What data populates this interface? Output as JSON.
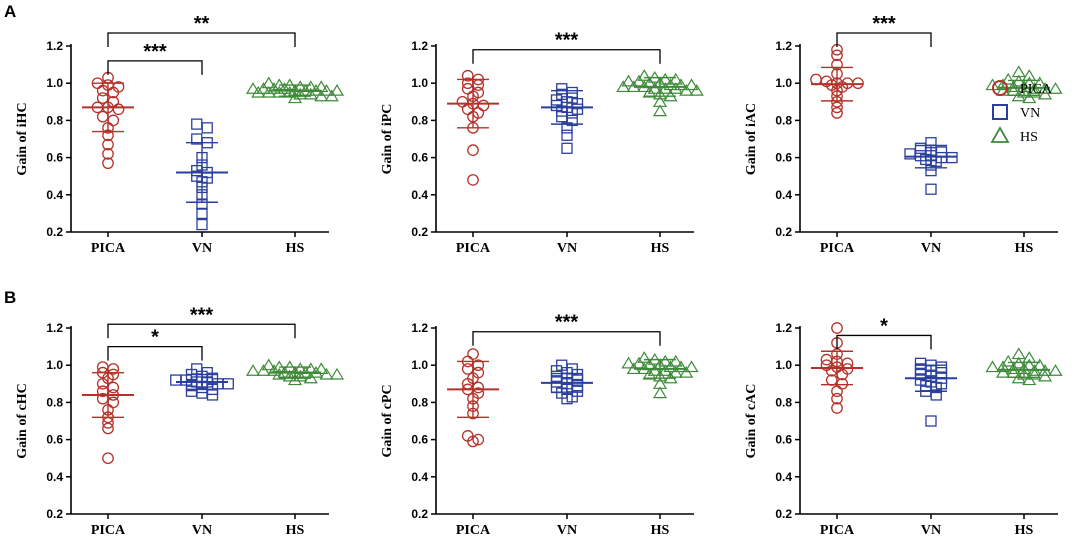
{
  "figure": {
    "panel_labels": [
      "A",
      "B"
    ]
  },
  "colors": {
    "PICA": "#b5322a",
    "VN": "#2b3f9e",
    "HS": "#3f8a3a",
    "axis": "#000000"
  },
  "legend": {
    "items": [
      {
        "label": "PICA",
        "shape": "circle",
        "color_key": "PICA"
      },
      {
        "label": "VN",
        "shape": "square",
        "color_key": "VN"
      },
      {
        "label": "HS",
        "shape": "triangle",
        "color_key": "HS"
      }
    ]
  },
  "chart_data": [
    {
      "type": "scatter",
      "title": "",
      "ylabel": "Gain of iHC",
      "categories": [
        "PICA",
        "VN",
        "HS"
      ],
      "ylim": [
        0.2,
        1.2
      ],
      "yticks": [
        "0.2",
        "0.4",
        "0.6",
        "0.8",
        "1.0",
        "1.2"
      ],
      "series": [
        {
          "name": "PICA",
          "mean": 0.87,
          "sd": 0.13,
          "values": [
            1.03,
            1.0,
            0.99,
            0.98,
            0.96,
            0.95,
            0.92,
            0.9,
            0.87,
            0.87,
            0.86,
            0.82,
            0.8,
            0.76,
            0.72,
            0.67,
            0.62,
            0.57
          ]
        },
        {
          "name": "VN",
          "mean": 0.52,
          "sd": 0.16,
          "values": [
            0.78,
            0.76,
            0.7,
            0.68,
            0.6,
            0.56,
            0.53,
            0.52,
            0.5,
            0.49,
            0.47,
            0.44,
            0.4,
            0.35,
            0.3,
            0.24
          ]
        },
        {
          "name": "HS",
          "mean": 0.96,
          "sd": 0.03,
          "values": [
            1.0,
            0.99,
            0.99,
            0.98,
            0.98,
            0.97,
            0.97,
            0.97,
            0.96,
            0.96,
            0.96,
            0.96,
            0.95,
            0.95,
            0.95,
            0.94,
            0.94,
            0.93,
            0.93,
            0.92,
            0.97,
            0.96,
            0.95,
            0.98
          ]
        }
      ],
      "significance": [
        {
          "from": "PICA",
          "to": "VN",
          "label": "***",
          "level": 1.12
        },
        {
          "from": "PICA",
          "to": "HS",
          "label": "**",
          "level": 1.27
        }
      ]
    },
    {
      "type": "scatter",
      "title": "",
      "ylabel": "Gain of iPC",
      "categories": [
        "PICA",
        "VN",
        "HS"
      ],
      "ylim": [
        0.2,
        1.2
      ],
      "yticks": [
        "0.2",
        "0.4",
        "0.6",
        "0.8",
        "1.0",
        "1.2"
      ],
      "series": [
        {
          "name": "PICA",
          "mean": 0.89,
          "sd": 0.13,
          "values": [
            1.04,
            1.02,
            1.0,
            0.99,
            0.97,
            0.95,
            0.93,
            0.9,
            0.89,
            0.88,
            0.86,
            0.84,
            0.82,
            0.76,
            0.64,
            0.48
          ]
        },
        {
          "name": "VN",
          "mean": 0.87,
          "sd": 0.09,
          "values": [
            0.97,
            0.95,
            0.94,
            0.92,
            0.91,
            0.9,
            0.89,
            0.88,
            0.87,
            0.86,
            0.85,
            0.84,
            0.82,
            0.8,
            0.76,
            0.72,
            0.65
          ]
        },
        {
          "name": "HS",
          "mean": 0.98,
          "sd": 0.05,
          "values": [
            1.04,
            1.03,
            1.02,
            1.01,
            1.0,
            1.0,
            0.99,
            0.99,
            0.98,
            0.98,
            0.98,
            0.97,
            0.97,
            0.96,
            0.96,
            0.95,
            0.94,
            0.93,
            0.9,
            0.85,
            1.01,
            0.99,
            0.97,
            1.02
          ]
        }
      ],
      "significance": [
        {
          "from": "PICA",
          "to": "HS",
          "label": "***",
          "level": 1.18
        }
      ]
    },
    {
      "type": "scatter",
      "title": "",
      "ylabel": "Gain of iAC",
      "categories": [
        "PICA",
        "VN",
        "HS"
      ],
      "ylim": [
        0.2,
        1.2
      ],
      "yticks": [
        "0.2",
        "0.4",
        "0.6",
        "0.8",
        "1.0",
        "1.2"
      ],
      "series": [
        {
          "name": "PICA",
          "mean": 0.995,
          "sd": 0.09,
          "values": [
            1.18,
            1.15,
            1.1,
            1.05,
            1.02,
            1.01,
            1.0,
            1.0,
            1.0,
            0.99,
            0.98,
            0.96,
            0.93,
            0.9,
            0.87,
            0.84
          ]
        },
        {
          "name": "VN",
          "mean": 0.605,
          "sd": 0.06,
          "values": [
            0.68,
            0.65,
            0.64,
            0.63,
            0.62,
            0.61,
            0.61,
            0.6,
            0.6,
            0.59,
            0.58,
            0.56,
            0.53,
            0.43
          ]
        },
        {
          "name": "HS",
          "mean": 0.975,
          "sd": 0.04,
          "values": [
            1.06,
            1.04,
            1.02,
            1.01,
            1.0,
            0.99,
            0.98,
            0.98,
            0.97,
            0.97,
            0.96,
            0.96,
            0.95,
            0.95,
            0.94,
            0.93,
            0.92,
            0.99,
            0.97,
            1.0
          ]
        }
      ],
      "significance": [
        {
          "from": "PICA",
          "to": "VN",
          "label": "***",
          "level": 1.27
        }
      ]
    },
    {
      "type": "scatter",
      "title": "",
      "ylabel": "Gain of cHC",
      "categories": [
        "PICA",
        "VN",
        "HS"
      ],
      "ylim": [
        0.2,
        1.2
      ],
      "yticks": [
        "0.2",
        "0.4",
        "0.6",
        "0.8",
        "1.0",
        "1.2"
      ],
      "series": [
        {
          "name": "PICA",
          "mean": 0.84,
          "sd": 0.12,
          "values": [
            0.99,
            0.98,
            0.96,
            0.95,
            0.93,
            0.9,
            0.88,
            0.86,
            0.84,
            0.82,
            0.8,
            0.76,
            0.72,
            0.69,
            0.66,
            0.5
          ]
        },
        {
          "name": "VN",
          "mean": 0.91,
          "sd": 0.04,
          "values": [
            0.98,
            0.96,
            0.95,
            0.94,
            0.93,
            0.92,
            0.92,
            0.91,
            0.91,
            0.9,
            0.9,
            0.89,
            0.88,
            0.87,
            0.86,
            0.85,
            0.84
          ]
        },
        {
          "name": "HS",
          "mean": 0.96,
          "sd": 0.03,
          "values": [
            1.0,
            0.99,
            0.99,
            0.98,
            0.98,
            0.97,
            0.97,
            0.96,
            0.96,
            0.96,
            0.95,
            0.95,
            0.95,
            0.94,
            0.94,
            0.93,
            0.92,
            0.97,
            0.96,
            0.98
          ]
        }
      ],
      "significance": [
        {
          "from": "PICA",
          "to": "VN",
          "label": "*",
          "level": 1.1
        },
        {
          "from": "PICA",
          "to": "HS",
          "label": "***",
          "level": 1.22
        }
      ]
    },
    {
      "type": "scatter",
      "title": "",
      "ylabel": "Gain of cPC",
      "categories": [
        "PICA",
        "VN",
        "HS"
      ],
      "ylim": [
        0.2,
        1.2
      ],
      "yticks": [
        "0.2",
        "0.4",
        "0.6",
        "0.8",
        "1.0",
        "1.2"
      ],
      "series": [
        {
          "name": "PICA",
          "mean": 0.87,
          "sd": 0.15,
          "values": [
            1.06,
            1.02,
            1.0,
            0.98,
            0.96,
            0.93,
            0.9,
            0.88,
            0.87,
            0.85,
            0.82,
            0.78,
            0.74,
            0.62,
            0.6,
            0.59
          ]
        },
        {
          "name": "VN",
          "mean": 0.905,
          "sd": 0.05,
          "values": [
            1.0,
            0.98,
            0.97,
            0.96,
            0.95,
            0.94,
            0.93,
            0.92,
            0.91,
            0.9,
            0.89,
            0.88,
            0.87,
            0.86,
            0.85,
            0.83,
            0.82
          ]
        },
        {
          "name": "HS",
          "mean": 0.98,
          "sd": 0.05,
          "values": [
            1.04,
            1.03,
            1.02,
            1.01,
            1.0,
            1.0,
            0.99,
            0.99,
            0.98,
            0.98,
            0.97,
            0.97,
            0.96,
            0.96,
            0.95,
            0.94,
            0.93,
            0.9,
            0.85,
            1.01,
            0.99,
            1.02
          ]
        }
      ],
      "significance": [
        {
          "from": "PICA",
          "to": "HS",
          "label": "***",
          "level": 1.18
        }
      ]
    },
    {
      "type": "scatter",
      "title": "",
      "ylabel": "Gain of cAC",
      "categories": [
        "PICA",
        "VN",
        "HS"
      ],
      "ylim": [
        0.2,
        1.2
      ],
      "yticks": [
        "0.2",
        "0.4",
        "0.6",
        "0.8",
        "1.0",
        "1.2"
      ],
      "series": [
        {
          "name": "PICA",
          "mean": 0.985,
          "sd": 0.09,
          "values": [
            1.2,
            1.12,
            1.06,
            1.03,
            1.02,
            1.01,
            1.0,
            0.99,
            0.98,
            0.97,
            0.95,
            0.92,
            0.9,
            0.86,
            0.82,
            0.77
          ]
        },
        {
          "name": "VN",
          "mean": 0.93,
          "sd": 0.07,
          "values": [
            1.01,
            1.0,
            0.99,
            0.98,
            0.97,
            0.96,
            0.95,
            0.94,
            0.93,
            0.92,
            0.91,
            0.9,
            0.89,
            0.88,
            0.86,
            0.84,
            0.7
          ]
        },
        {
          "name": "HS",
          "mean": 0.975,
          "sd": 0.04,
          "values": [
            1.06,
            1.04,
            1.02,
            1.01,
            1.0,
            0.99,
            0.98,
            0.98,
            0.97,
            0.97,
            0.96,
            0.96,
            0.95,
            0.95,
            0.94,
            0.93,
            0.92,
            0.99,
            0.97,
            1.0
          ]
        }
      ],
      "significance": [
        {
          "from": "PICA",
          "to": "VN",
          "label": "*",
          "level": 1.16
        }
      ]
    }
  ]
}
